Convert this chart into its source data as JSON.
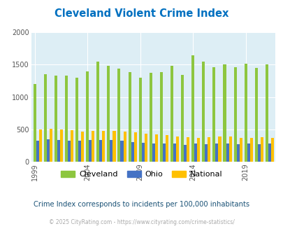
{
  "title": "Cleveland Violent Crime Index",
  "years": [
    1999,
    2000,
    2001,
    2002,
    2003,
    2004,
    2005,
    2006,
    2007,
    2008,
    2009,
    2010,
    2011,
    2012,
    2013,
    2014,
    2015,
    2016,
    2017,
    2018,
    2019,
    2020,
    2021
  ],
  "cleveland": [
    1200,
    1350,
    1330,
    1330,
    1300,
    1400,
    1550,
    1480,
    1440,
    1390,
    1300,
    1370,
    1390,
    1480,
    1340,
    1640,
    1550,
    1460,
    1500,
    1460,
    1510,
    1450,
    1500
  ],
  "ohio": [
    330,
    350,
    340,
    330,
    330,
    340,
    340,
    340,
    330,
    300,
    295,
    280,
    280,
    280,
    265,
    280,
    275,
    280,
    285,
    275,
    280,
    275,
    285
  ],
  "national": [
    500,
    510,
    500,
    490,
    470,
    475,
    480,
    475,
    460,
    450,
    430,
    420,
    410,
    390,
    380,
    370,
    375,
    385,
    385,
    370,
    370,
    375,
    365
  ],
  "cleveland_color": "#8dc63f",
  "ohio_color": "#4472c4",
  "national_color": "#ffc000",
  "plot_bg_color": "#ddeef5",
  "fig_bg_color": "#ffffff",
  "ylim": [
    0,
    2000
  ],
  "yticks": [
    0,
    500,
    1000,
    1500,
    2000
  ],
  "xtick_years": [
    1999,
    2004,
    2009,
    2014,
    2019
  ],
  "title_color": "#0070c0",
  "subtitle": "Crime Index corresponds to incidents per 100,000 inhabitants",
  "footer": "© 2025 CityRating.com - https://www.cityrating.com/crime-statistics/",
  "legend_labels": [
    "Cleveland",
    "Ohio",
    "National"
  ],
  "bar_width": 0.27,
  "grid_color": "#ffffff",
  "tick_color": "#555555",
  "subtitle_color": "#1a5276",
  "footer_color": "#aaaaaa"
}
